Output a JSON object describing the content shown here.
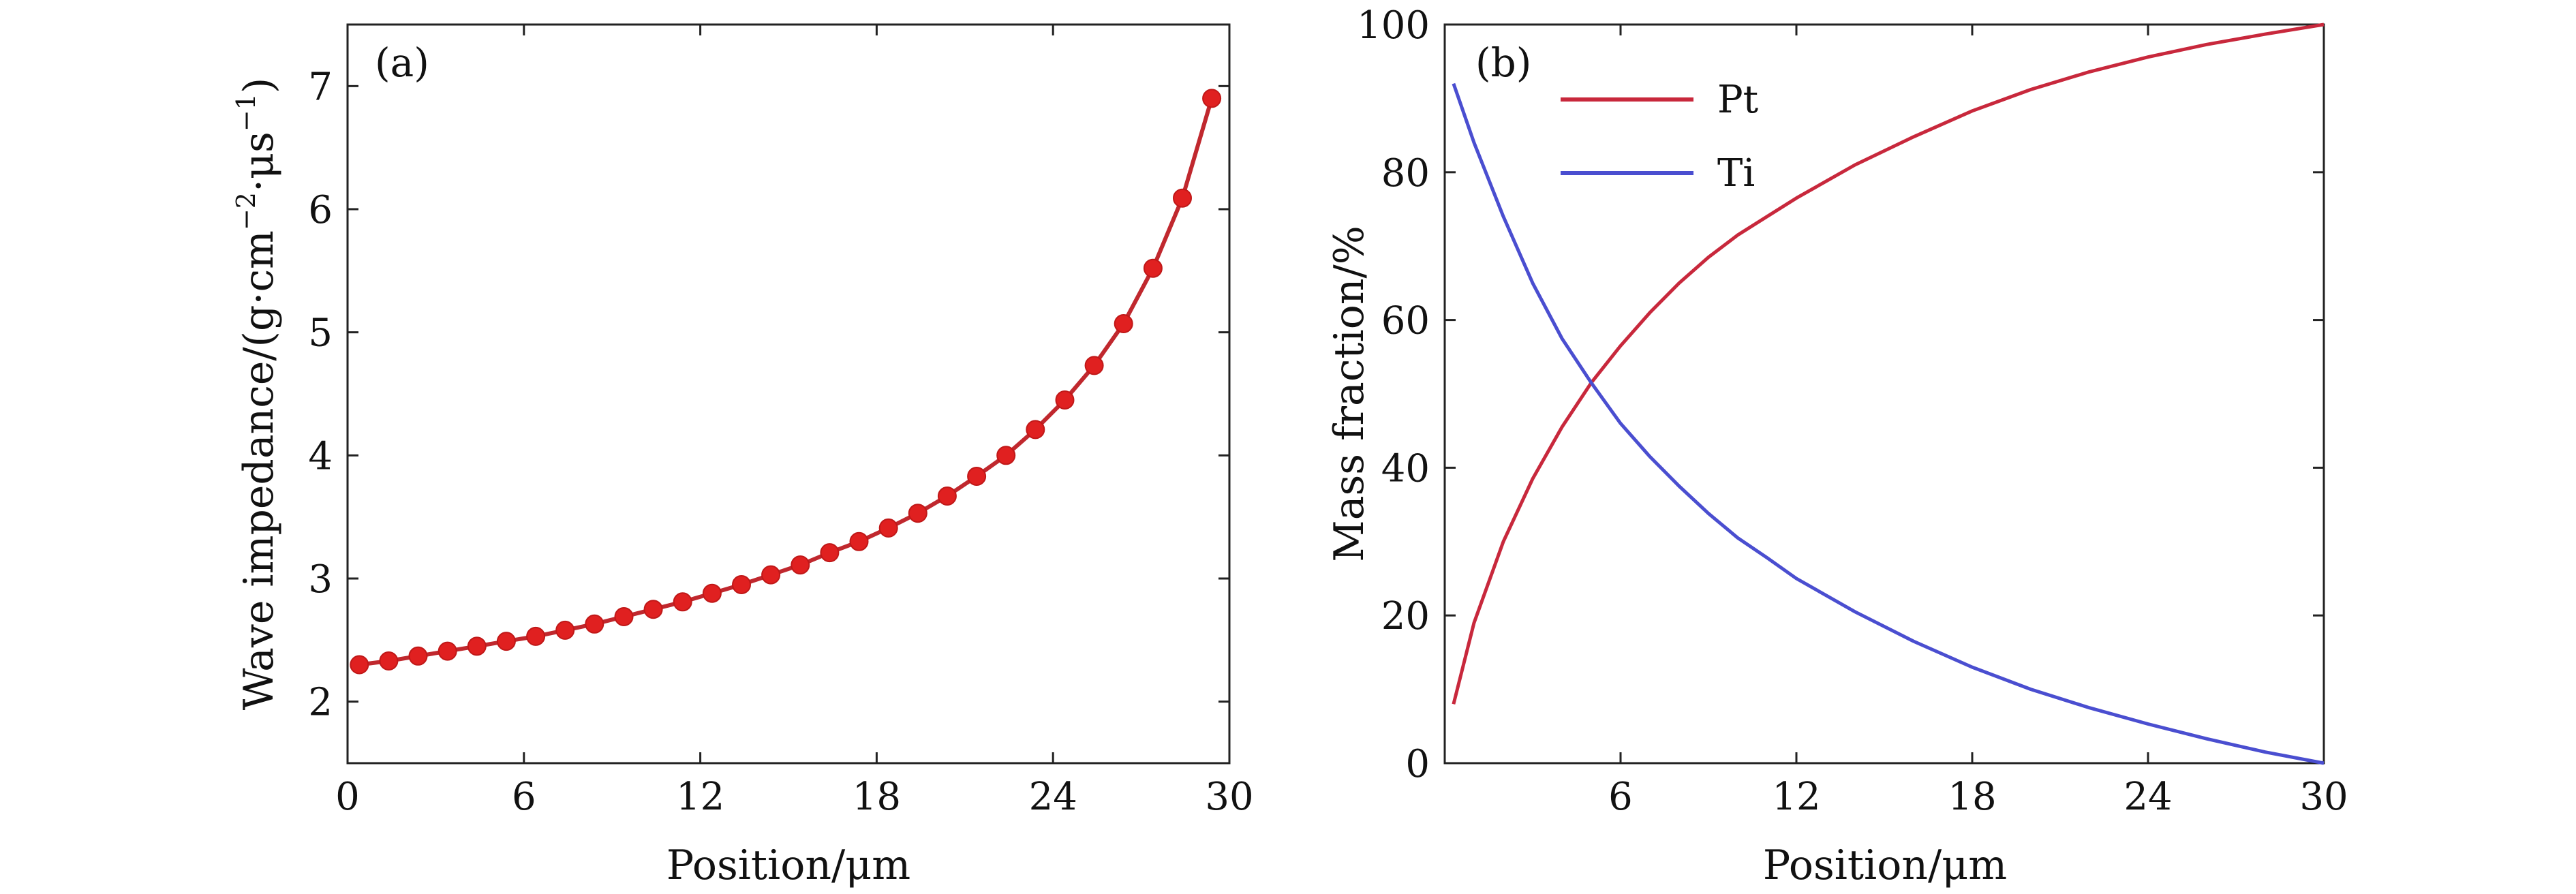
{
  "chart_data": [
    {
      "type": "line",
      "panel_label": "(a)",
      "xlabel": "Position/μm",
      "ylabel_text": "Wave impedance/(g·cm",
      "ylabel_exp1": "−2",
      "ylabel_mid": "·μs",
      "ylabel_exp2": "−1",
      "ylabel_close": ")",
      "xlim": [
        0,
        30
      ],
      "ylim": [
        1.5,
        7.5
      ],
      "xticks": [
        "0",
        "6",
        "12",
        "18",
        "24",
        "30"
      ],
      "yticks": [
        "2",
        "3",
        "4",
        "5",
        "6",
        "7"
      ],
      "grid": false,
      "series": [
        {
          "color": "#d42020",
          "markers": true,
          "x": [
            0.4,
            1.4,
            2.4,
            3.4,
            4.4,
            5.4,
            6.4,
            7.4,
            8.4,
            9.4,
            10.4,
            11.4,
            12.4,
            13.4,
            14.4,
            15.4,
            16.4,
            17.4,
            18.4,
            19.4,
            20.4,
            21.4,
            22.4,
            23.4,
            24.4,
            25.4,
            26.4,
            27.4,
            28.4,
            29.4
          ],
          "y": [
            2.3,
            2.33,
            2.37,
            2.41,
            2.45,
            2.49,
            2.53,
            2.58,
            2.63,
            2.69,
            2.75,
            2.81,
            2.88,
            2.95,
            3.03,
            3.11,
            3.21,
            3.3,
            3.41,
            3.53,
            3.67,
            3.83,
            4.0,
            4.21,
            4.45,
            4.73,
            5.07,
            5.52,
            6.09,
            6.9
          ]
        }
      ]
    },
    {
      "type": "line",
      "panel_label": "(b)",
      "xlabel": "Position/μm",
      "ylabel": "Mass fraction/%",
      "xlim": [
        0,
        30
      ],
      "ylim": [
        0,
        100
      ],
      "xticks": [
        "6",
        "12",
        "18",
        "24",
        "30"
      ],
      "yticks": [
        "0",
        "20",
        "40",
        "60",
        "80",
        "100"
      ],
      "grid": false,
      "legend_position": "top-left",
      "series": [
        {
          "name": "Pt",
          "color": "#c8283c",
          "x": [
            0.3,
            1,
            2,
            3,
            4,
            5,
            6,
            7,
            8,
            9,
            10,
            11,
            12,
            14,
            16,
            18,
            20,
            22,
            24,
            26,
            28,
            30
          ],
          "y": [
            8,
            19,
            30,
            38.5,
            45.5,
            51.5,
            56.5,
            61,
            65,
            68.5,
            71.5,
            74,
            76.5,
            81,
            84.8,
            88.3,
            91.2,
            93.6,
            95.6,
            97.3,
            98.7,
            100
          ]
        },
        {
          "name": "Ti",
          "color": "#4a4ed0",
          "x": [
            0.3,
            1,
            2,
            3,
            4,
            5,
            6,
            7,
            8,
            9,
            10,
            11,
            12,
            14,
            16,
            18,
            20,
            22,
            24,
            26,
            28,
            30
          ],
          "y": [
            92,
            84,
            74,
            65,
            57.5,
            51.5,
            46,
            41.5,
            37.5,
            33.8,
            30.5,
            27.8,
            25,
            20.5,
            16.5,
            13,
            10,
            7.5,
            5.3,
            3.3,
            1.5,
            0
          ]
        }
      ]
    }
  ]
}
